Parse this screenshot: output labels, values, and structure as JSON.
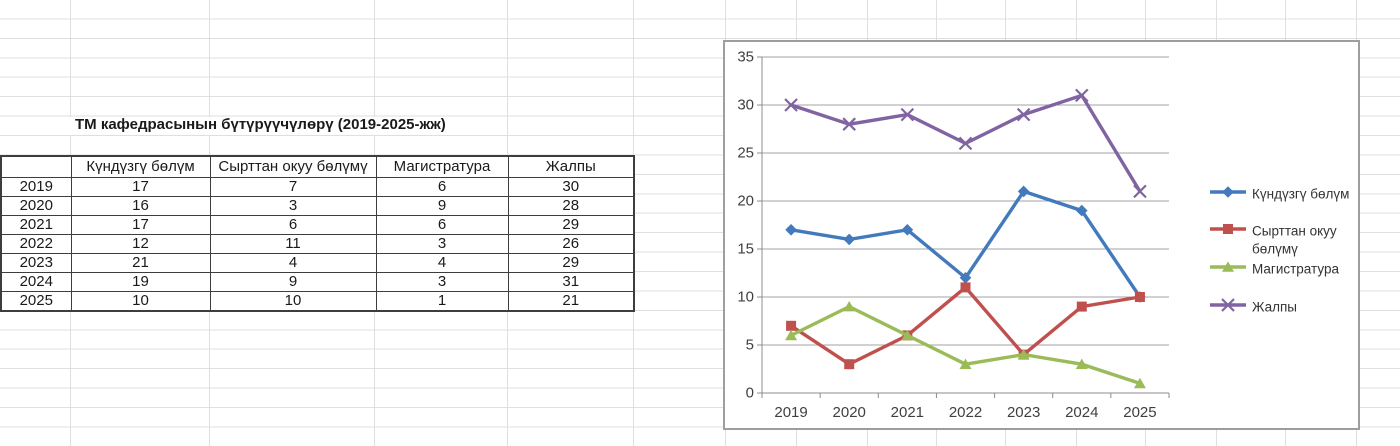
{
  "sheet": {
    "title": "ТМ кафедрасынын бүтүрүүчүлөрү (2019-2025-жж)"
  },
  "table": {
    "headers": [
      "",
      "Күндүзгү бөлүм",
      "Сырттан окуу бөлүмү",
      "Магистратура",
      "Жалпы"
    ],
    "rows": [
      [
        "2019",
        "17",
        "7",
        "6",
        "30"
      ],
      [
        "2020",
        "16",
        "3",
        "9",
        "28"
      ],
      [
        "2021",
        "17",
        "6",
        "6",
        "29"
      ],
      [
        "2022",
        "12",
        "11",
        "3",
        "26"
      ],
      [
        "2023",
        "21",
        "4",
        "4",
        "29"
      ],
      [
        "2024",
        "19",
        "9",
        "3",
        "31"
      ],
      [
        "2025",
        "10",
        "10",
        "1",
        "21"
      ]
    ]
  },
  "chart_data": {
    "type": "line",
    "title": "",
    "xlabel": "",
    "ylabel": "",
    "categories": [
      "2019",
      "2020",
      "2021",
      "2022",
      "2023",
      "2024",
      "2025"
    ],
    "series": [
      {
        "name": "Күндүзгү бөлүм",
        "values": [
          17,
          16,
          17,
          12,
          21,
          19,
          10
        ],
        "color": "#4379BD",
        "marker": "diamond",
        "legend_lines": [
          "Күндүзгү бөлүм"
        ]
      },
      {
        "name": "Сырттан окуу бөлүмү",
        "values": [
          7,
          3,
          6,
          11,
          4,
          9,
          10
        ],
        "color": "#C0504D",
        "marker": "square",
        "legend_lines": [
          "Сырттан окуу",
          "бөлүмү"
        ]
      },
      {
        "name": "Магистратура",
        "values": [
          6,
          9,
          6,
          3,
          4,
          3,
          1
        ],
        "color": "#9BBB59",
        "marker": "triangle",
        "legend_lines": [
          "Магистратура"
        ]
      },
      {
        "name": "Жалпы",
        "values": [
          30,
          28,
          29,
          26,
          29,
          31,
          21
        ],
        "color": "#8064A2",
        "marker": "x",
        "legend_lines": [
          "Жалпы"
        ]
      }
    ],
    "ylim": [
      0,
      35
    ],
    "yticks": [
      0,
      5,
      10,
      15,
      20,
      25,
      30,
      35
    ],
    "grid": true,
    "legend_position": "right",
    "colors": {
      "grid_line": "#a3a3a3",
      "axis_line": "#8c8c8c",
      "axis_text": "#3f3f3f",
      "legend_text": "#333333"
    }
  }
}
